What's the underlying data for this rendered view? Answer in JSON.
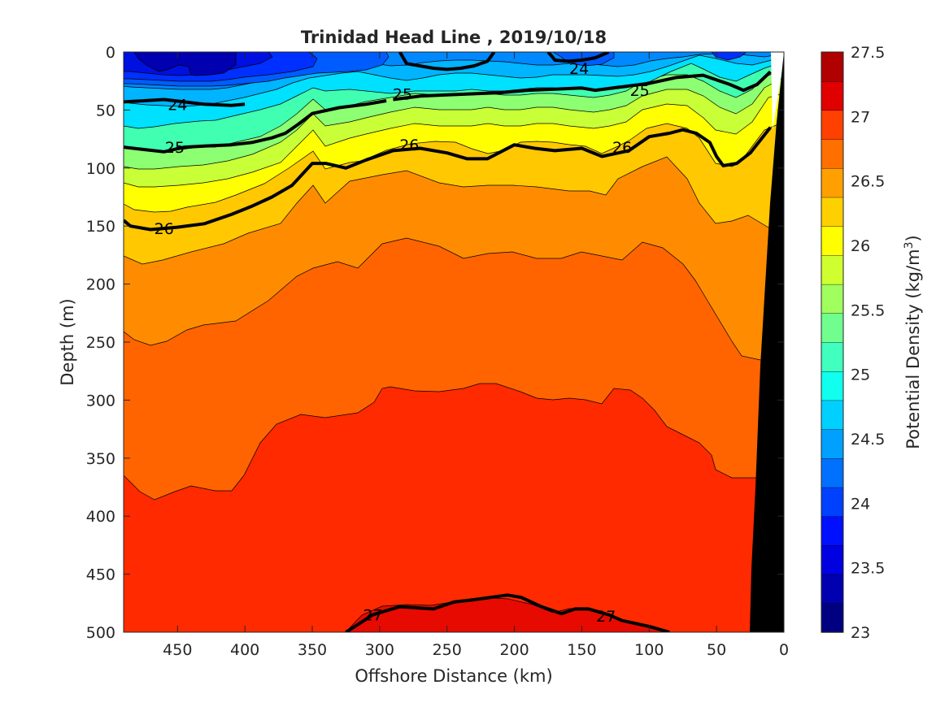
{
  "chart_data": {
    "type": "heatmap",
    "title": "Trinidad Head Line , 2019/10/18",
    "xlabel": "Offshore Distance (km)",
    "ylabel": "Depth (m)",
    "colorbar_label": "Potential Density (kg/m",
    "colorbar_label_superscript": "3",
    "colorbar_label_suffix": ")",
    "x_reversed": true,
    "y_reversed": true,
    "xlim": [
      0,
      490
    ],
    "ylim": [
      0,
      500
    ],
    "x_ticks": [
      450,
      400,
      350,
      300,
      250,
      200,
      150,
      100,
      50,
      0
    ],
    "y_ticks": [
      0,
      50,
      100,
      150,
      200,
      250,
      300,
      350,
      400,
      450,
      500
    ],
    "colorbar_ticks": [
      23,
      23.5,
      24,
      24.5,
      25,
      25.5,
      26,
      26.5,
      27,
      27.5
    ],
    "colorbar_range": [
      23,
      27.5
    ],
    "levels": [
      23,
      23.25,
      23.5,
      23.75,
      24,
      24.25,
      24.5,
      24.75,
      25,
      25.25,
      25.5,
      25.75,
      26,
      26.25,
      26.5,
      26.75,
      27,
      27.25,
      27.5
    ],
    "colormap": [
      "#000080",
      "#0000b0",
      "#0000e0",
      "#0010ff",
      "#0040ff",
      "#0070ff",
      "#00a0ff",
      "#00d0ff",
      "#10ffef",
      "#40ffbf",
      "#70ff8f",
      "#a0ff5f",
      "#d0ff2f",
      "#ffff00",
      "#ffd000",
      "#ffa000",
      "#ff7000",
      "#ff4000",
      "#e00000",
      "#b00000"
    ],
    "isopycnals": [
      {
        "sigma": 24.0,
        "x": [
          490,
          475,
          460,
          445,
          430,
          410,
          400
        ],
        "depth": [
          43,
          42,
          41,
          43,
          45,
          46,
          45
        ]
      },
      {
        "sigma": 24.0,
        "x": [
          130,
          140,
          145,
          150,
          160,
          170,
          172,
          175
        ],
        "depth": [
          0,
          5,
          6,
          7,
          8,
          7,
          4,
          0
        ]
      },
      {
        "sigma": 24.5,
        "x": [
          285,
          280,
          270,
          260,
          250,
          240,
          230,
          220,
          215
        ],
        "depth": [
          0,
          10,
          12,
          14,
          15,
          14,
          12,
          8,
          0
        ]
      },
      {
        "sigma": 25.0,
        "x": [
          290,
          270,
          250,
          230,
          210,
          190,
          170,
          150,
          140,
          120,
          100,
          80,
          60,
          40,
          30,
          20,
          10
        ],
        "depth": [
          41,
          38,
          37,
          36,
          35,
          33,
          32,
          31,
          33,
          30,
          27,
          22,
          20,
          28,
          33,
          28,
          17
        ]
      },
      {
        "sigma": 25.0,
        "x": [
          490,
          475,
          460,
          445,
          430,
          410,
          395,
          380,
          370,
          360,
          350,
          330,
          310,
          295
        ],
        "depth": [
          82,
          84,
          86,
          82,
          81,
          80,
          78,
          74,
          70,
          62,
          53,
          48,
          45,
          42
        ]
      },
      {
        "sigma": 26.0,
        "x": [
          490,
          485,
          470,
          460,
          450,
          430,
          410,
          395,
          380,
          365,
          350,
          340,
          325,
          310,
          290,
          270,
          250,
          235,
          220,
          200,
          185,
          170,
          150,
          135,
          115,
          100,
          85,
          75,
          65,
          55,
          50,
          45,
          35,
          25,
          10
        ],
        "depth": [
          145,
          150,
          153,
          152,
          151,
          148,
          140,
          133,
          125,
          115,
          96,
          96,
          100,
          93,
          85,
          83,
          87,
          92,
          92,
          80,
          83,
          85,
          83,
          90,
          85,
          73,
          70,
          67,
          70,
          78,
          90,
          98,
          96,
          87,
          65
        ]
      },
      {
        "sigma": 27.0,
        "x": [
          325,
          305,
          285,
          260,
          245,
          230,
          205,
          195,
          180,
          165,
          155,
          145,
          130,
          120,
          100,
          85
        ],
        "depth": [
          500,
          485,
          478,
          480,
          474,
          472,
          468,
          470,
          478,
          484,
          480,
          480,
          485,
          490,
          495,
          500
        ]
      }
    ],
    "contour_labels": [
      {
        "text": "24",
        "x": 450,
        "depth": 45
      },
      {
        "text": "24",
        "x": 152,
        "depth": 14
      },
      {
        "text": "25",
        "x": 283,
        "depth": 36
      },
      {
        "text": "25",
        "x": 107,
        "depth": 33
      },
      {
        "text": "25",
        "x": 452,
        "depth": 82
      },
      {
        "text": "26",
        "x": 460,
        "depth": 152
      },
      {
        "text": "26",
        "x": 278,
        "depth": 80
      },
      {
        "text": "26",
        "x": 120,
        "depth": 82
      },
      {
        "text": "27",
        "x": 305,
        "depth": 485
      },
      {
        "text": "27",
        "x": 132,
        "depth": 486
      }
    ]
  }
}
